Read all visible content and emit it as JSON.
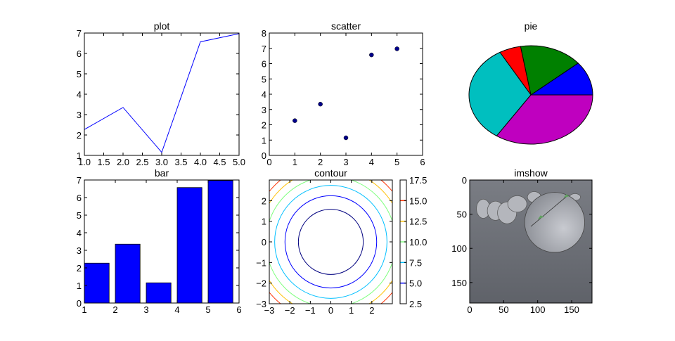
{
  "chart_data": [
    {
      "type": "line",
      "title": "plot",
      "x": [
        1,
        2,
        3,
        4,
        5
      ],
      "y": [
        2.27,
        3.35,
        1.15,
        6.57,
        6.97
      ],
      "xlim": [
        1,
        5
      ],
      "ylim": [
        1,
        7
      ],
      "xticks": [
        "1.0",
        "1.5",
        "2.0",
        "2.5",
        "3.0",
        "3.5",
        "4.0",
        "4.5",
        "5.0"
      ],
      "yticks": [
        "1",
        "2",
        "3",
        "4",
        "5",
        "6",
        "7"
      ],
      "color": "#0000ff",
      "grid": false
    },
    {
      "type": "scatter",
      "title": "scatter",
      "x": [
        1,
        2,
        3,
        4,
        5
      ],
      "y": [
        2.27,
        3.35,
        1.15,
        6.57,
        6.97
      ],
      "xlim": [
        0,
        6
      ],
      "ylim": [
        0,
        8
      ],
      "xticks": [
        "0",
        "1",
        "2",
        "3",
        "4",
        "5",
        "6"
      ],
      "yticks": [
        "0",
        "1",
        "2",
        "3",
        "4",
        "5",
        "6",
        "7",
        "8"
      ],
      "color": "#00008b",
      "grid": false
    },
    {
      "type": "pie",
      "title": "pie",
      "values": [
        2.27,
        3.35,
        1.15,
        6.57,
        6.97
      ],
      "colors": [
        "#0000ff",
        "#008000",
        "#ff0000",
        "#00bfbf",
        "#bf00bf"
      ]
    },
    {
      "type": "bar",
      "title": "bar",
      "x": [
        1,
        2,
        3,
        4,
        5
      ],
      "values": [
        2.27,
        3.35,
        1.15,
        6.57,
        6.97
      ],
      "bar_width": 0.8,
      "xlim": [
        1,
        6
      ],
      "ylim": [
        0,
        7
      ],
      "xticks": [
        "1",
        "2",
        "3",
        "4",
        "5",
        "6"
      ],
      "yticks": [
        "0",
        "1",
        "2",
        "3",
        "4",
        "5",
        "6",
        "7"
      ],
      "color": "#0000ff",
      "grid": false
    },
    {
      "type": "contour",
      "title": "contour",
      "function": "x^2 + y^2",
      "xlim": [
        -3,
        3
      ],
      "ylim": [
        -3,
        3
      ],
      "xticks": [
        "−3",
        "−2",
        "−1",
        "0",
        "1",
        "2"
      ],
      "yticks": [
        "−3",
        "−2",
        "−1",
        "0",
        "1",
        "2"
      ],
      "levels": [
        2.5,
        5,
        7.5,
        10,
        12.5,
        15
      ],
      "level_colors": [
        "#00007f",
        "#0000ff",
        "#00bfff",
        "#7fff7f",
        "#ffbf00",
        "#ff3000"
      ],
      "colorbar": {
        "range": [
          2.5,
          17.5
        ],
        "ticks": [
          "2.5",
          "5.0",
          "7.5",
          "10.0",
          "12.5",
          "15.0",
          "17.5"
        ]
      }
    },
    {
      "type": "image",
      "title": "imshow",
      "xlim": [
        0,
        180
      ],
      "ylim": [
        180,
        0
      ],
      "xticks": [
        "0",
        "50",
        "100",
        "150"
      ],
      "yticks": [
        "0",
        "50",
        "100",
        "150"
      ],
      "background": "#5f6269",
      "subject_color": "#b4b6bc"
    }
  ]
}
